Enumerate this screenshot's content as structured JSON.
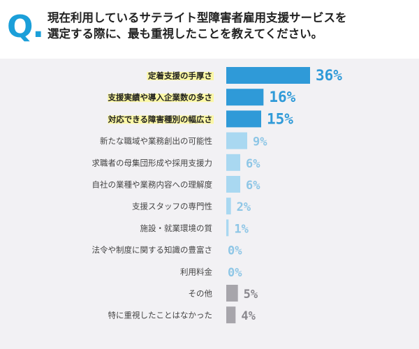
{
  "question": {
    "mark": "Q.",
    "text_line1": "現在利用しているサテライト型障害者雇用支援サービスを",
    "text_line2": "選定する際に、最も重視したことを教えてください。"
  },
  "colors": {
    "accent": "#1b9fd9",
    "top": "#2f9ad8",
    "mid": "#a9d8f1",
    "gray": "#a7a5ab",
    "highlight": "#fbf7a5",
    "panel": "#f2f1f4"
  },
  "chart_data": {
    "type": "bar",
    "orientation": "horizontal",
    "title": "",
    "xlabel": "",
    "ylabel": "",
    "xlim": [
      0,
      36
    ],
    "categories": [
      "定着支援の手厚さ",
      "支援実績や導入企業数の多さ",
      "対応できる障害種別の幅広さ",
      "新たな職域や業務創出の可能性",
      "求職者の母集団形成や採用支援力",
      "自社の業種や業務内容への理解度",
      "支援スタッフの専門性",
      "施設・就業環境の質",
      "法令や制度に関する知識の豊富さ",
      "利用料金",
      "その他",
      "特に重視したことはなかった"
    ],
    "values": [
      36,
      16,
      15,
      9,
      6,
      6,
      2,
      1,
      0,
      0,
      5,
      4
    ],
    "value_labels": [
      "36%",
      "16%",
      "15%",
      "9%",
      "6%",
      "6%",
      "2%",
      "1%",
      "0%",
      "0%",
      "5%",
      "4%"
    ],
    "groups": [
      "top",
      "top",
      "top",
      "mid",
      "mid",
      "mid",
      "mid",
      "mid",
      "mid",
      "mid",
      "gray",
      "gray"
    ],
    "highlighted": [
      true,
      true,
      true,
      false,
      false,
      false,
      false,
      false,
      false,
      false,
      false,
      false
    ],
    "grid": false,
    "legend": "none"
  }
}
